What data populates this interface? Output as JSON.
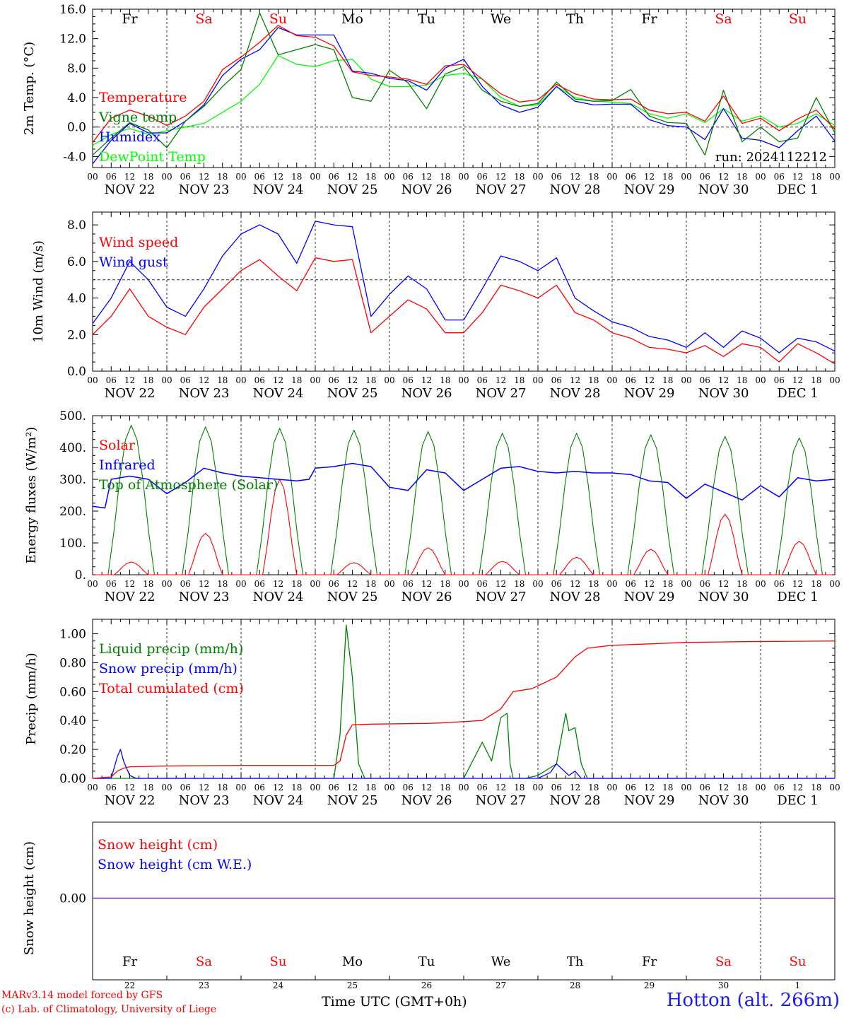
{
  "chart_data": [
    {
      "type": "line",
      "ylabel": "2m Temp. (°C)",
      "ylim": [
        -5.5,
        16.0
      ],
      "yticks": [
        -4.0,
        0.0,
        4.0,
        8.0,
        12.0,
        16.0
      ],
      "ytick_labels": [
        "-4.0",
        "0.0",
        "4.0",
        "8.0",
        "12.0",
        "16.0"
      ],
      "refline": 0.0,
      "annotation": "run: 2024112212",
      "x_hours": [
        0,
        6,
        12,
        18,
        24,
        30,
        36,
        42,
        48,
        54,
        60,
        66,
        72,
        78,
        84,
        90,
        96,
        102,
        108,
        114,
        120,
        126,
        132,
        138,
        144,
        150,
        156,
        162,
        168,
        174,
        180,
        186,
        192,
        198,
        204,
        210,
        216,
        222,
        228,
        234,
        240
      ],
      "series": [
        {
          "name": "Temperature",
          "color": "#ff0000",
          "values": [
            -2.1,
            1.2,
            2.3,
            1.5,
            0.2,
            1.5,
            3.5,
            7.8,
            9.5,
            11.5,
            13.8,
            12.4,
            12.2,
            11.0,
            7.5,
            7.0,
            6.8,
            6.5,
            5.8,
            8.3,
            8.5,
            6.5,
            4.5,
            3.4,
            3.7,
            5.8,
            4.5,
            3.8,
            3.7,
            3.8,
            2.3,
            1.8,
            2.0,
            0.8,
            4.2,
            0.5,
            1.2,
            -0.5,
            1.1,
            2.3,
            -0.3
          ]
        },
        {
          "name": "Vigne temp",
          "color": "#008000",
          "values": [
            -3.8,
            -1.5,
            0.6,
            -0.4,
            -2.8,
            0.8,
            2.8,
            5.5,
            7.8,
            15.5,
            9.8,
            10.5,
            11.2,
            10.5,
            4.0,
            3.5,
            7.7,
            6.0,
            2.5,
            7.2,
            8.2,
            5.0,
            3.5,
            2.8,
            3.2,
            6.1,
            3.8,
            3.5,
            3.6,
            5.1,
            1.5,
            0.6,
            0.5,
            -3.8,
            5.0,
            -2.0,
            0.0,
            -2.0,
            -1.5,
            4.0,
            -0.8
          ]
        },
        {
          "name": "Humidex",
          "color": "#0000ff",
          "values": [
            -5.0,
            -1.8,
            0.5,
            -0.8,
            -0.8,
            0.8,
            3.0,
            7.0,
            9.2,
            10.5,
            13.5,
            12.5,
            12.5,
            12.5,
            7.6,
            7.3,
            6.6,
            6.3,
            5.0,
            8.0,
            9.2,
            5.5,
            3.0,
            2.0,
            2.7,
            5.5,
            3.5,
            3.0,
            3.1,
            3.1,
            1.0,
            0.2,
            0.0,
            -1.7,
            2.5,
            -1.5,
            -1.8,
            -2.8,
            -0.5,
            1.5,
            -1.9
          ]
        },
        {
          "name": "DewPoint Temp",
          "color": "#00ff00",
          "values": [
            -2.5,
            -1.0,
            -0.2,
            -1.0,
            -0.5,
            0.0,
            0.5,
            2.0,
            3.5,
            5.8,
            9.7,
            8.5,
            8.2,
            9.0,
            9.2,
            6.5,
            5.5,
            5.5,
            5.7,
            7.0,
            7.3,
            6.5,
            4.0,
            2.8,
            3.0,
            5.5,
            4.0,
            3.5,
            3.4,
            3.2,
            1.8,
            1.2,
            1.8,
            0.6,
            2.5,
            0.8,
            1.5,
            0.0,
            0.5,
            1.8,
            0.2
          ]
        }
      ]
    },
    {
      "type": "line",
      "ylabel": "10m Wind (m/s)",
      "ylim": [
        0,
        8.7
      ],
      "yticks": [
        0,
        2,
        4,
        6,
        8
      ],
      "ytick_labels": [
        "0.0",
        "2.0",
        "4.0",
        "6.0",
        "8.0"
      ],
      "refline": 5.0,
      "x_hours": [
        0,
        6,
        12,
        18,
        24,
        30,
        36,
        42,
        48,
        54,
        60,
        66,
        72,
        78,
        84,
        90,
        96,
        102,
        108,
        114,
        120,
        126,
        132,
        138,
        144,
        150,
        156,
        162,
        168,
        174,
        180,
        186,
        192,
        198,
        204,
        210,
        216,
        222,
        228,
        234,
        240
      ],
      "series": [
        {
          "name": "Wind speed",
          "color": "#ff0000",
          "values": [
            2.0,
            3.0,
            4.5,
            3.0,
            2.4,
            2.0,
            3.5,
            4.5,
            5.5,
            6.1,
            5.2,
            4.4,
            6.2,
            6.0,
            6.1,
            2.1,
            3.0,
            3.9,
            3.4,
            2.1,
            2.1,
            3.2,
            4.7,
            4.4,
            4.0,
            4.7,
            3.2,
            2.8,
            2.1,
            1.8,
            1.3,
            1.2,
            1.0,
            1.4,
            0.8,
            1.5,
            1.3,
            0.5,
            1.5,
            1.0,
            0.4
          ]
        },
        {
          "name": "Wind gust",
          "color": "#0000ff",
          "values": [
            2.6,
            4.0,
            6.0,
            5.0,
            3.5,
            3.0,
            4.5,
            6.3,
            7.5,
            8.0,
            7.5,
            5.9,
            8.2,
            8.0,
            7.9,
            3.0,
            4.2,
            5.2,
            4.5,
            2.8,
            2.8,
            4.5,
            6.3,
            6.0,
            5.5,
            6.2,
            4.0,
            3.3,
            2.7,
            2.4,
            1.9,
            1.7,
            1.3,
            2.1,
            1.3,
            2.2,
            1.8,
            1.0,
            1.8,
            1.6,
            1.1
          ]
        }
      ]
    },
    {
      "type": "line",
      "ylabel": "Energy fluxes (W/m²)",
      "ylim": [
        0,
        500
      ],
      "yticks": [
        0,
        100,
        200,
        300,
        400,
        500
      ],
      "ytick_labels": [
        "0.",
        "100.",
        "200.",
        "300.",
        "400.",
        "500."
      ],
      "peaks": {
        "solar": [
          40,
          130,
          300,
          38,
          85,
          42,
          55,
          80,
          190,
          105
        ],
        "toa": [
          470,
          465,
          460,
          455,
          450,
          445,
          445,
          440,
          435,
          430
        ]
      },
      "series": [
        {
          "name": "Solar",
          "color": "#ff0000"
        },
        {
          "name": "Infrared",
          "color": "#0000ff",
          "x_hours": [
            0,
            4,
            6,
            12,
            18,
            24,
            30,
            36,
            42,
            48,
            54,
            60,
            66,
            70,
            72,
            78,
            84,
            90,
            96,
            102,
            108,
            114,
            120,
            126,
            132,
            138,
            144,
            150,
            156,
            162,
            168,
            174,
            180,
            186,
            192,
            198,
            204,
            210,
            216,
            222,
            228,
            234,
            240
          ],
          "values": [
            215,
            210,
            300,
            310,
            300,
            255,
            290,
            335,
            320,
            310,
            305,
            300,
            295,
            300,
            335,
            340,
            350,
            340,
            275,
            265,
            330,
            320,
            265,
            300,
            335,
            340,
            325,
            320,
            325,
            320,
            320,
            315,
            295,
            290,
            240,
            285,
            260,
            235,
            280,
            245,
            305,
            295,
            300
          ]
        },
        {
          "name": "Top of Atmosphere (Solar)",
          "color": "#008000"
        }
      ]
    },
    {
      "type": "line",
      "ylabel": "Precip (mm/h)",
      "ylim": [
        0,
        1.1
      ],
      "yticks": [
        0,
        0.2,
        0.4,
        0.6,
        0.8,
        1.0
      ],
      "ytick_labels": [
        "0.00",
        "0.20",
        "0.40",
        "0.60",
        "0.80",
        "1.00"
      ],
      "series": [
        {
          "name": "Liquid precip (mm/h)",
          "color": "#008000",
          "x_hours": [
            0,
            78,
            80,
            82,
            84,
            86,
            88,
            90,
            120,
            126,
            129,
            132,
            134,
            135,
            136,
            140,
            144,
            150,
            153,
            154,
            156,
            158,
            160,
            240
          ],
          "values": [
            0,
            0,
            0.3,
            1.06,
            0.7,
            0.1,
            0.0,
            0.0,
            0.0,
            0.25,
            0.12,
            0.42,
            0.45,
            0.1,
            0.0,
            0.0,
            0.02,
            0.1,
            0.45,
            0.33,
            0.35,
            0.1,
            0.0,
            0.0
          ]
        },
        {
          "name": "Snow precip (mm/h)",
          "color": "#0000ff",
          "x_hours": [
            0,
            6,
            8,
            9,
            10,
            12,
            14,
            24,
            144,
            148,
            150,
            152,
            154,
            156,
            158,
            240
          ],
          "values": [
            0,
            0,
            0.15,
            0.2,
            0.12,
            0.02,
            0.0,
            0.0,
            0.0,
            0.04,
            0.1,
            0.06,
            0.02,
            0.05,
            0.0,
            0.0
          ]
        },
        {
          "name": "Total cumulated (cm)",
          "color": "#ff0000",
          "x_hours": [
            0,
            6,
            8,
            10,
            12,
            24,
            48,
            72,
            78,
            80,
            82,
            84,
            90,
            108,
            114,
            126,
            132,
            136,
            142,
            150,
            156,
            160,
            168,
            180,
            192,
            210,
            240
          ],
          "values": [
            0,
            0.01,
            0.05,
            0.07,
            0.08,
            0.085,
            0.09,
            0.09,
            0.09,
            0.12,
            0.3,
            0.37,
            0.375,
            0.38,
            0.385,
            0.4,
            0.48,
            0.6,
            0.62,
            0.7,
            0.84,
            0.9,
            0.92,
            0.93,
            0.94,
            0.945,
            0.95
          ]
        }
      ]
    },
    {
      "type": "line",
      "ylabel": "Snow height (cm)",
      "yticks": [
        0
      ],
      "ytick_labels": [
        "0.00"
      ],
      "series": [
        {
          "name": "Snow height (cm)",
          "color": "#ff0000",
          "values": [
            0,
            0
          ]
        },
        {
          "name": "Snow height (cm W.E.)",
          "color": "#0000ff",
          "values": [
            0,
            0
          ]
        }
      ]
    }
  ],
  "x_axis": {
    "range_hours": [
      0,
      240
    ],
    "hour_labels": [
      "00",
      "06",
      "12",
      "18"
    ],
    "end_label": "00",
    "date_labels": [
      "NOV 22",
      "NOV 23",
      "NOV 24",
      "NOV 25",
      "NOV 26",
      "NOV 27",
      "NOV 28",
      "NOV 29",
      "NOV 30",
      "DEC  1"
    ],
    "week_boundary_day": 9
  },
  "weekdays": [
    {
      "label": "Fr",
      "color": "#000000"
    },
    {
      "label": "Sa",
      "color": "#ff0000"
    },
    {
      "label": "Su",
      "color": "#ff0000"
    },
    {
      "label": "Mo",
      "color": "#000000"
    },
    {
      "label": "Tu",
      "color": "#000000"
    },
    {
      "label": "We",
      "color": "#000000"
    },
    {
      "label": "Th",
      "color": "#000000"
    },
    {
      "label": "Fr",
      "color": "#000000"
    },
    {
      "label": "Sa",
      "color": "#ff0000"
    },
    {
      "label": "Su",
      "color": "#ff0000"
    }
  ],
  "day_numbers": [
    "22",
    "23",
    "24",
    "25",
    "26",
    "27",
    "28",
    "29",
    "30",
    "1"
  ],
  "footer": {
    "credit_line1": "MARv3.14 model forced by GFS",
    "credit_line2": "(c) Lab. of Climatology, University of Liege",
    "xlabel": "Time UTC (GMT+0h)",
    "station": "Hotton (alt. 266m)"
  }
}
